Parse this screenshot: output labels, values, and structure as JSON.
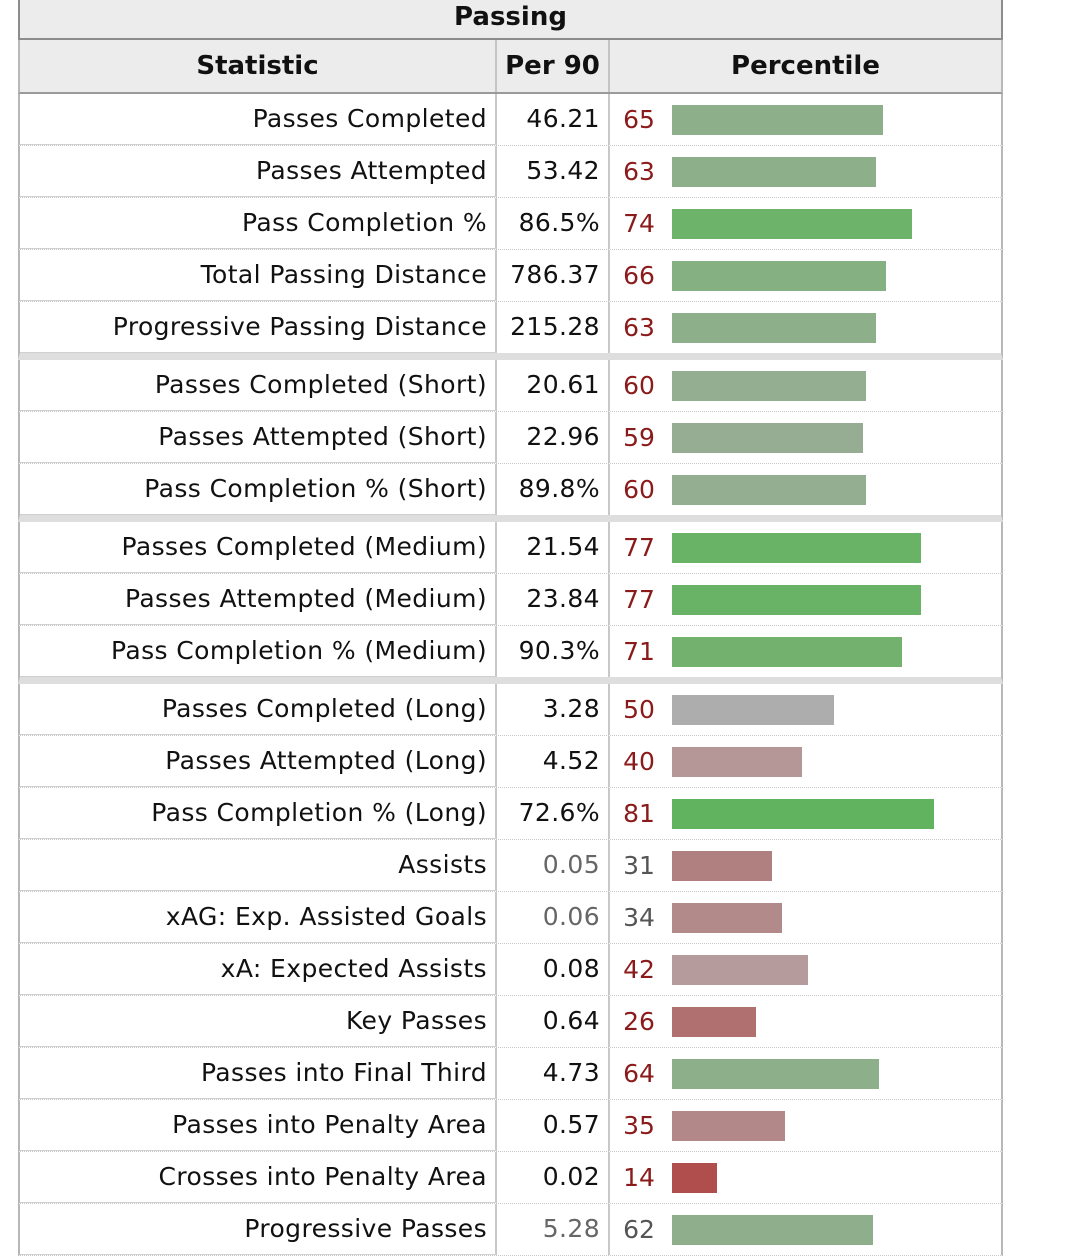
{
  "table": {
    "title": "Passing",
    "headers": {
      "statistic": "Statistic",
      "per90": "Per 90",
      "percentile": "Percentile"
    },
    "rows": [
      {
        "stat": "Passes Completed",
        "per90": "46.21",
        "percentile": 65,
        "color": "#8db08a",
        "group_end": false,
        "muted": false
      },
      {
        "stat": "Passes Attempted",
        "per90": "53.42",
        "percentile": 63,
        "color": "#8db08a",
        "group_end": false,
        "muted": false
      },
      {
        "stat": "Pass Completion %",
        "per90": "86.5%",
        "percentile": 74,
        "color": "#6db36a",
        "group_end": false,
        "muted": false
      },
      {
        "stat": "Total Passing Distance",
        "per90": "786.37",
        "percentile": 66,
        "color": "#85b082",
        "group_end": false,
        "muted": false
      },
      {
        "stat": "Progressive Passing Distance",
        "per90": "215.28",
        "percentile": 63,
        "color": "#8db08a",
        "group_end": true,
        "muted": false
      },
      {
        "stat": "Passes Completed (Short)",
        "per90": "20.61",
        "percentile": 60,
        "color": "#93ae90",
        "group_end": false,
        "muted": false
      },
      {
        "stat": "Passes Attempted (Short)",
        "per90": "22.96",
        "percentile": 59,
        "color": "#96ad93",
        "group_end": false,
        "muted": false
      },
      {
        "stat": "Pass Completion % (Short)",
        "per90": "89.8%",
        "percentile": 60,
        "color": "#93ae90",
        "group_end": true,
        "muted": false
      },
      {
        "stat": "Passes Completed (Medium)",
        "per90": "21.54",
        "percentile": 77,
        "color": "#69b366",
        "group_end": false,
        "muted": false
      },
      {
        "stat": "Passes Attempted (Medium)",
        "per90": "23.84",
        "percentile": 77,
        "color": "#69b366",
        "group_end": false,
        "muted": false
      },
      {
        "stat": "Pass Completion % (Medium)",
        "per90": "90.3%",
        "percentile": 71,
        "color": "#72b26e",
        "group_end": true,
        "muted": false
      },
      {
        "stat": "Passes Completed (Long)",
        "per90": "3.28",
        "percentile": 50,
        "color": "#adadad",
        "group_end": false,
        "muted": false
      },
      {
        "stat": "Passes Attempted (Long)",
        "per90": "4.52",
        "percentile": 40,
        "color": "#b59798",
        "group_end": false,
        "muted": false
      },
      {
        "stat": "Pass Completion % (Long)",
        "per90": "72.6%",
        "percentile": 81,
        "color": "#62b35f",
        "group_end": false,
        "muted": false
      },
      {
        "stat": "Assists",
        "per90": "0.05",
        "percentile": 31,
        "color": "#b07f7f",
        "group_end": false,
        "muted": true
      },
      {
        "stat": "xAG: Exp. Assisted Goals",
        "per90": "0.06",
        "percentile": 34,
        "color": "#b38a8a",
        "group_end": false,
        "muted": true
      },
      {
        "stat": "xA: Expected Assists",
        "per90": "0.08",
        "percentile": 42,
        "color": "#b59b9b",
        "group_end": false,
        "muted": false
      },
      {
        "stat": "Key Passes",
        "per90": "0.64",
        "percentile": 26,
        "color": "#b07070",
        "group_end": false,
        "muted": false
      },
      {
        "stat": "Passes into Final Third",
        "per90": "4.73",
        "percentile": 64,
        "color": "#8db08a",
        "group_end": false,
        "muted": false
      },
      {
        "stat": "Passes into Penalty Area",
        "per90": "0.57",
        "percentile": 35,
        "color": "#b38888",
        "group_end": false,
        "muted": false
      },
      {
        "stat": "Crosses into Penalty Area",
        "per90": "0.02",
        "percentile": 14,
        "color": "#b04e4e",
        "group_end": false,
        "muted": false
      },
      {
        "stat": "Progressive Passes",
        "per90": "5.28",
        "percentile": 62,
        "color": "#8fae8c",
        "group_end": false,
        "muted": true
      }
    ]
  }
}
